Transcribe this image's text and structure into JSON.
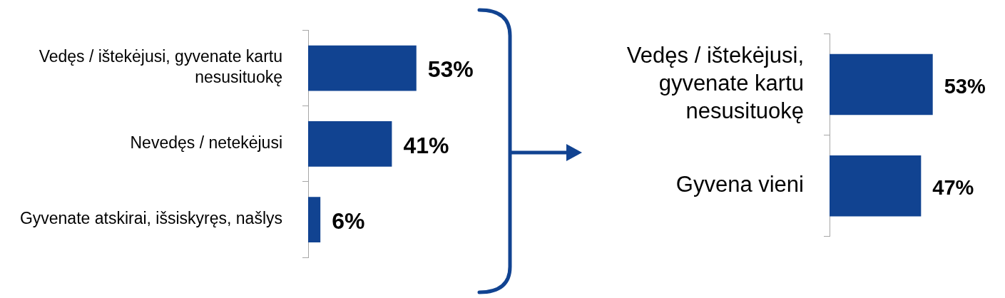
{
  "chart_data": [
    {
      "type": "bar",
      "orientation": "horizontal",
      "categories": [
        "Vedęs / ištekėjusi, gyvenate kartu nesusituokę",
        "Nevedęs / netekėjusi",
        "Gyvenate atskirai, išsiskyręs, našlys"
      ],
      "values": [
        53,
        41,
        6
      ],
      "value_labels": [
        "53%",
        "41%",
        "6%"
      ],
      "color": "#114391"
    },
    {
      "type": "bar",
      "orientation": "horizontal",
      "categories": [
        "Vedęs / ištekėjusi, gyvenate kartu nesusituokę",
        "Gyvena vieni"
      ],
      "values": [
        53,
        47
      ],
      "value_labels": [
        "53%",
        "47%"
      ],
      "color": "#114391"
    }
  ]
}
